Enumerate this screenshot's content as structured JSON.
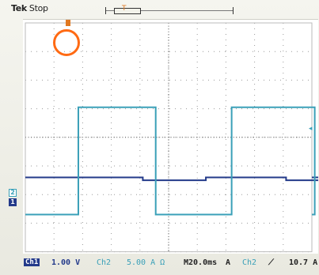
{
  "header": {
    "brand": "Tek",
    "mode": "Stop",
    "trigger_position_label": "T"
  },
  "markers": {
    "ch1": "1",
    "ch2": "2",
    "trigger_level_glyph": "◂"
  },
  "status_bar": {
    "ch1_label": "Ch1",
    "ch1_scale": "1.00 V",
    "ch2_label": "Ch2",
    "ch2_scale": "5.00 A Ω",
    "timebase": "M20.0ms",
    "trigger_source": "A",
    "trigger_channel": "Ch2",
    "trigger_slope": "⟋",
    "trigger_level": "10.7 A"
  },
  "colors": {
    "ch1": "#233a8a",
    "ch2": "#3aa0b8",
    "trigger": "#e07820",
    "annotation": "#ff6a13"
  },
  "waveforms": {
    "ch1": {
      "type": "square",
      "high_divisions": 2.6,
      "low_divisions": 2.5,
      "transitions_divisions": [
        4.1,
        6.3,
        9.1,
        11.3
      ]
    },
    "ch2": {
      "type": "square",
      "high_divisions": 5.05,
      "low_divisions": 1.3,
      "transitions_divisions": [
        1.85,
        4.55,
        7.2,
        10.1
      ]
    }
  }
}
